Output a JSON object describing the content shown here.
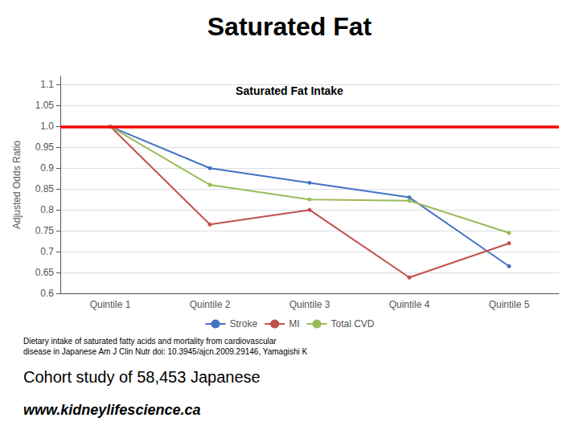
{
  "chart_data": {
    "type": "line",
    "title": "Saturated Fat",
    "subtitle": "Saturated Fat Intake",
    "ylabel": "Adjusted Odds Ratio",
    "categories": [
      "Quintile 1",
      "Quintile 2",
      "Quintile 3",
      "Quintile 4",
      "Quintile 5"
    ],
    "series": [
      {
        "name": "Stroke",
        "color": "#4472C4",
        "values": [
          1.0,
          0.9,
          0.865,
          0.83,
          0.665
        ]
      },
      {
        "name": "MI",
        "color": "#C0504D",
        "values": [
          1.0,
          0.765,
          0.8,
          0.638,
          0.72
        ]
      },
      {
        "name": "Total CVD",
        "color": "#9BBB59",
        "values": [
          1.0,
          0.86,
          0.825,
          0.822,
          0.745
        ]
      }
    ],
    "reference_line": {
      "value": 1.0,
      "color": "#FF0000"
    },
    "ylim": [
      0.6,
      1.12
    ],
    "yticks": [
      0.6,
      0.65,
      0.7,
      0.75,
      0.8,
      0.85,
      0.9,
      0.95,
      {
        "value": 1.0,
        "label": "1.0"
      },
      1.05,
      1.1
    ],
    "grid": true,
    "legend": "bottom",
    "annotations": [
      "Dietary intake of saturated fatty acids and mortality from cardiovascular\ndisease in Japanese Am J Clin Nutr doi: 10.3945/ajcn.2009.29146, Yamagishi K",
      "Cohort study of 58,453 Japanese",
      "www.kidneylifescience.ca"
    ]
  }
}
